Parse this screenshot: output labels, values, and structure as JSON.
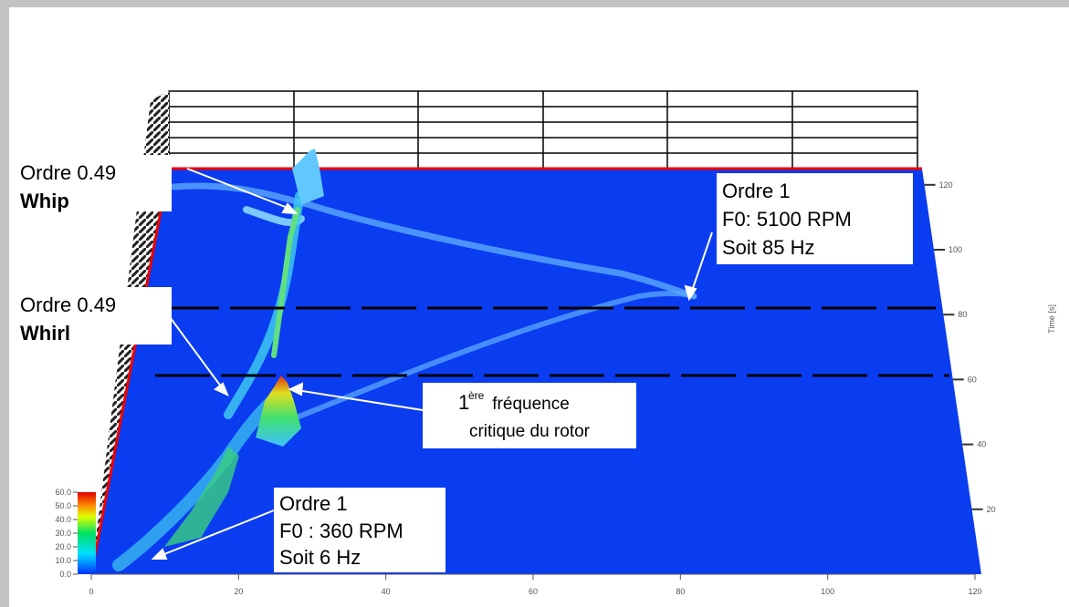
{
  "chart_data": {
    "type": "waterfall",
    "y_axis_label": "Time [s]",
    "xlim": [
      0,
      120
    ],
    "xticks": [
      0,
      20,
      40,
      60,
      80,
      100,
      120
    ],
    "tlim": [
      0,
      125
    ],
    "tticks": [
      20,
      40,
      60,
      80,
      100,
      120
    ],
    "colorbar_lim": [
      0,
      60
    ],
    "colorbar_ticks": [
      {
        "value": 0,
        "label": "0.0"
      },
      {
        "value": 10,
        "label": "10.0"
      },
      {
        "value": 20,
        "label": "20.0"
      },
      {
        "value": 30,
        "label": "30.0"
      },
      {
        "value": 40,
        "label": "40.0"
      },
      {
        "value": 50,
        "label": "50.0"
      },
      {
        "value": 60,
        "label": "60.0"
      }
    ],
    "annotations": {
      "whip": {
        "line1": "Ordre 0.49",
        "line2": "Whip"
      },
      "order1_high": {
        "line1": "Ordre 1",
        "line2": "F0: 5100 RPM",
        "line3": "Soit 85 Hz"
      },
      "whirl": {
        "line1": "Ordre 0.49",
        "line2": "Whirl"
      },
      "critical": {
        "prefix": "1",
        "sup": "ère",
        "line1": " fréquence",
        "line2": "critique du rotor"
      },
      "order1_low": {
        "line1": "Ordre 1",
        "line2": "F0 : 360 RPM",
        "line3": "Soit 6 Hz"
      }
    }
  }
}
